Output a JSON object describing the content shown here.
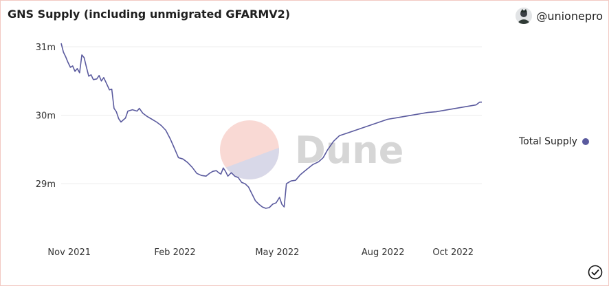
{
  "header": {
    "title": "GNS Supply (including unmigrated GFARMV2)",
    "author": "@unionepro"
  },
  "watermark": {
    "text": "Dune"
  },
  "colors": {
    "line": "#5a5a9e",
    "grid": "#ececec",
    "tick_text": "#333333",
    "watermark_text": "#d6d6d6",
    "watermark_top": "#f9d9d4",
    "watermark_bottom": "#d8d8e8",
    "border": "#f2c9c2"
  },
  "icons": {
    "avatar": "avatar-image",
    "check": "check-circle-icon"
  },
  "chart_data": {
    "type": "line",
    "title": "GNS Supply (including unmigrated GFARMV2)",
    "xlabel": "",
    "ylabel": "",
    "x_ticks": [
      "Nov 2021",
      "Feb 2022",
      "May 2022",
      "Aug 2022",
      "Oct 2022"
    ],
    "y_ticks": [
      "31m",
      "30m",
      "29m"
    ],
    "ylim": [
      28.62,
      31.05
    ],
    "xlim": [
      "2021-10-25",
      "2022-10-26"
    ],
    "grid": true,
    "legend": "right",
    "series": [
      {
        "name": "Total Supply",
        "points": [
          [
            "2021-10-25",
            31.05
          ],
          [
            "2021-10-27",
            30.92
          ],
          [
            "2021-10-29",
            30.85
          ],
          [
            "2021-10-31",
            30.77
          ],
          [
            "2021-11-02",
            30.7
          ],
          [
            "2021-11-04",
            30.72
          ],
          [
            "2021-11-06",
            30.64
          ],
          [
            "2021-11-08",
            30.68
          ],
          [
            "2021-11-10",
            30.62
          ],
          [
            "2021-11-12",
            30.88
          ],
          [
            "2021-11-14",
            30.84
          ],
          [
            "2021-11-16",
            30.7
          ],
          [
            "2021-11-18",
            30.57
          ],
          [
            "2021-11-20",
            30.59
          ],
          [
            "2021-11-22",
            30.52
          ],
          [
            "2021-11-25",
            30.53
          ],
          [
            "2021-11-27",
            30.58
          ],
          [
            "2021-11-29",
            30.5
          ],
          [
            "2021-12-01",
            30.55
          ],
          [
            "2021-12-03",
            30.48
          ],
          [
            "2021-12-06",
            30.37
          ],
          [
            "2021-12-08",
            30.38
          ],
          [
            "2021-12-10",
            30.1
          ],
          [
            "2021-12-12",
            30.05
          ],
          [
            "2021-12-14",
            29.95
          ],
          [
            "2021-12-16",
            29.9
          ],
          [
            "2021-12-18",
            29.93
          ],
          [
            "2021-12-20",
            29.96
          ],
          [
            "2021-12-22",
            30.06
          ],
          [
            "2021-12-26",
            30.08
          ],
          [
            "2021-12-30",
            30.06
          ],
          [
            "2022-01-01",
            30.1
          ],
          [
            "2022-01-04",
            30.03
          ],
          [
            "2022-01-08",
            29.98
          ],
          [
            "2022-01-12",
            29.94
          ],
          [
            "2022-01-16",
            29.9
          ],
          [
            "2022-01-20",
            29.85
          ],
          [
            "2022-01-24",
            29.78
          ],
          [
            "2022-01-28",
            29.65
          ],
          [
            "2022-02-01",
            29.5
          ],
          [
            "2022-02-04",
            29.38
          ],
          [
            "2022-02-08",
            29.36
          ],
          [
            "2022-02-12",
            29.31
          ],
          [
            "2022-02-16",
            29.24
          ],
          [
            "2022-02-20",
            29.15
          ],
          [
            "2022-02-24",
            29.12
          ],
          [
            "2022-02-28",
            29.11
          ],
          [
            "2022-03-03",
            29.15
          ],
          [
            "2022-03-06",
            29.18
          ],
          [
            "2022-03-09",
            29.19
          ],
          [
            "2022-03-11",
            29.16
          ],
          [
            "2022-03-13",
            29.14
          ],
          [
            "2022-03-15",
            29.23
          ],
          [
            "2022-03-17",
            29.18
          ],
          [
            "2022-03-19",
            29.11
          ],
          [
            "2022-03-22",
            29.16
          ],
          [
            "2022-03-25",
            29.11
          ],
          [
            "2022-03-28",
            29.09
          ],
          [
            "2022-03-31",
            29.02
          ],
          [
            "2022-04-03",
            29.0
          ],
          [
            "2022-04-06",
            28.95
          ],
          [
            "2022-04-09",
            28.85
          ],
          [
            "2022-04-12",
            28.75
          ],
          [
            "2022-04-15",
            28.7
          ],
          [
            "2022-04-18",
            28.66
          ],
          [
            "2022-04-21",
            28.64
          ],
          [
            "2022-04-24",
            28.65
          ],
          [
            "2022-04-27",
            28.7
          ],
          [
            "2022-04-30",
            28.72
          ],
          [
            "2022-05-03",
            28.8
          ],
          [
            "2022-05-05",
            28.7
          ],
          [
            "2022-05-07",
            28.66
          ],
          [
            "2022-05-09",
            29.0
          ],
          [
            "2022-05-13",
            29.04
          ],
          [
            "2022-05-17",
            29.05
          ],
          [
            "2022-05-21",
            29.13
          ],
          [
            "2022-05-26",
            29.2
          ],
          [
            "2022-06-01",
            29.28
          ],
          [
            "2022-06-06",
            29.32
          ],
          [
            "2022-06-10",
            29.38
          ],
          [
            "2022-06-14",
            29.5
          ],
          [
            "2022-06-19",
            29.62
          ],
          [
            "2022-06-24",
            29.7
          ],
          [
            "2022-07-01",
            29.74
          ],
          [
            "2022-07-08",
            29.78
          ],
          [
            "2022-07-15",
            29.82
          ],
          [
            "2022-07-22",
            29.86
          ],
          [
            "2022-07-29",
            29.9
          ],
          [
            "2022-08-05",
            29.94
          ],
          [
            "2022-08-12",
            29.96
          ],
          [
            "2022-08-19",
            29.98
          ],
          [
            "2022-08-26",
            30.0
          ],
          [
            "2022-09-02",
            30.02
          ],
          [
            "2022-09-09",
            30.04
          ],
          [
            "2022-09-16",
            30.05
          ],
          [
            "2022-09-23",
            30.07
          ],
          [
            "2022-09-30",
            30.09
          ],
          [
            "2022-10-07",
            30.11
          ],
          [
            "2022-10-14",
            30.13
          ],
          [
            "2022-10-21",
            30.15
          ],
          [
            "2022-10-24",
            30.19
          ],
          [
            "2022-10-26",
            30.19
          ]
        ]
      }
    ]
  }
}
